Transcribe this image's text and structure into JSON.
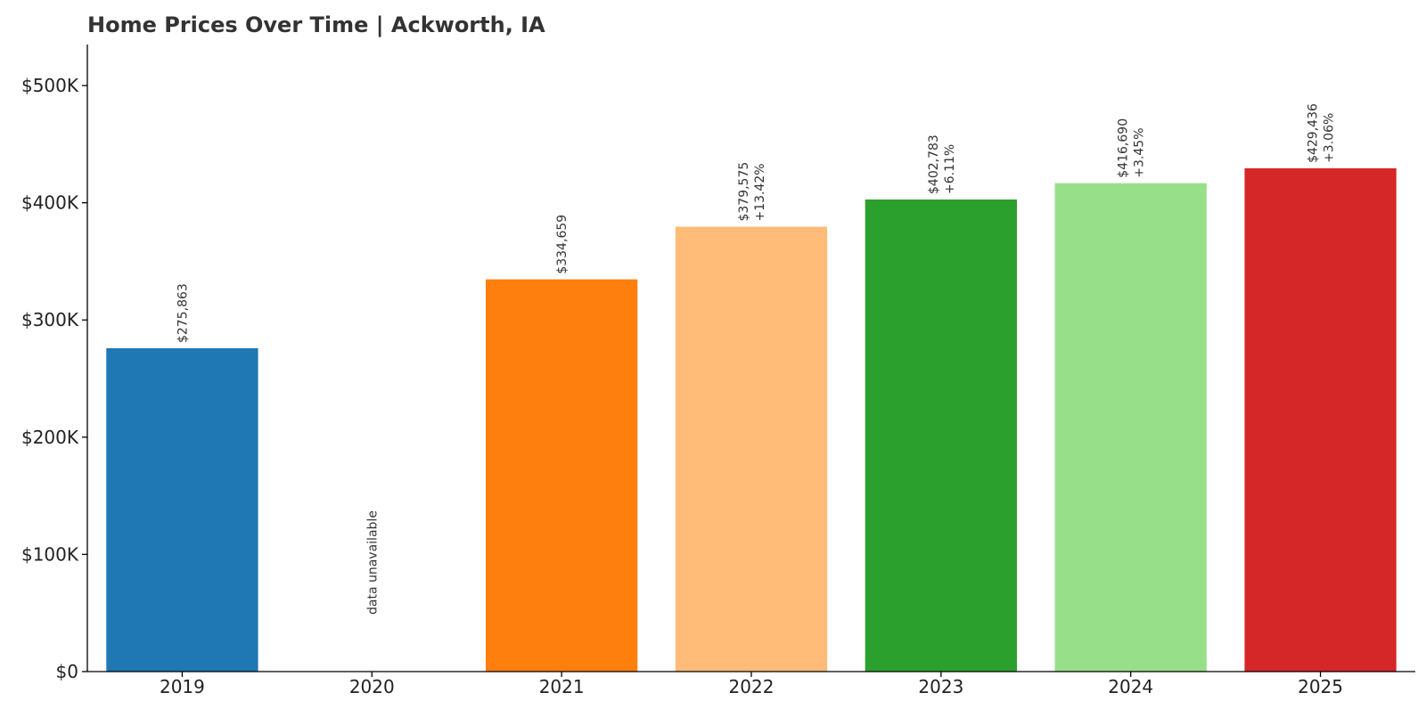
{
  "chart_data": {
    "type": "bar",
    "title": "Home Prices Over Time | Ackworth, IA",
    "xlabel": "",
    "ylabel": "",
    "categories": [
      "2019",
      "2020",
      "2021",
      "2022",
      "2023",
      "2024",
      "2025"
    ],
    "values": [
      275863,
      null,
      334659,
      379575,
      402783,
      416690,
      429436
    ],
    "value_labels": [
      "$275,863",
      "data unavailable",
      "$334,659",
      "$379,575",
      "$402,783",
      "$416,690",
      "$429,436"
    ],
    "change_labels": [
      "",
      "",
      "",
      "+13.42%",
      "+6.11%",
      "+3.45%",
      "+3.06%"
    ],
    "colors": [
      "#1f77b4",
      "#1f77b4",
      "#ff7f0e",
      "#ffbb78",
      "#2ca02c",
      "#98df8a",
      "#d62728"
    ],
    "ylim": [
      0,
      535000
    ],
    "yticks": [
      0,
      100000,
      200000,
      300000,
      400000,
      500000
    ],
    "ytick_labels": [
      "$0",
      "$100K",
      "$200K",
      "$300K",
      "$400K",
      "$500K"
    ],
    "grid": false,
    "legend": "none"
  }
}
